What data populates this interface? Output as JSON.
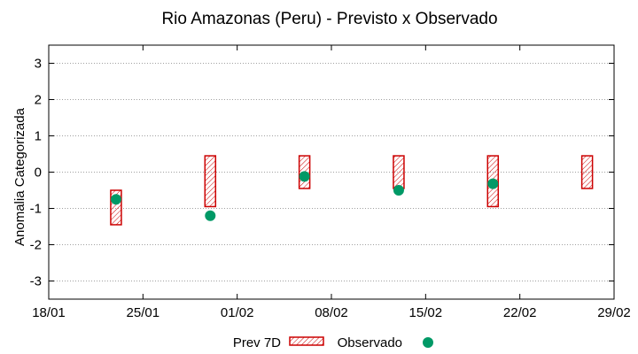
{
  "chart_data": {
    "type": "range-bar-with-points",
    "title": "Rio Amazonas (Peru) - Previsto x Observado",
    "ylabel": "Anomalia Categorizada",
    "xlabel": "",
    "ylim": [
      -3.5,
      3.5
    ],
    "yticks": [
      "3",
      "2",
      "1",
      "0",
      "-1",
      "-2",
      "-3"
    ],
    "ytick_values": [
      3,
      2,
      1,
      0,
      -1,
      -2,
      -3
    ],
    "xlim_days": [
      0,
      42
    ],
    "xticks": [
      "18/01",
      "25/01",
      "01/02",
      "08/02",
      "15/02",
      "22/02",
      "29/02"
    ],
    "xtick_days": [
      0,
      7,
      14,
      21,
      28,
      35,
      42
    ],
    "grid": true,
    "legend_position": "bottom-center",
    "series": [
      {
        "name": "Prev 7D",
        "kind": "range",
        "color": "#cc0000",
        "points": [
          {
            "day": 5,
            "low": -1.45,
            "high": -0.5
          },
          {
            "day": 12,
            "low": -0.95,
            "high": 0.45
          },
          {
            "day": 19,
            "low": -0.45,
            "high": 0.45
          },
          {
            "day": 26,
            "low": -0.45,
            "high": 0.45
          },
          {
            "day": 33,
            "low": -0.95,
            "high": 0.45
          },
          {
            "day": 40,
            "low": -0.45,
            "high": 0.45
          }
        ]
      },
      {
        "name": "Observado",
        "kind": "point",
        "color": "#009966",
        "points": [
          {
            "day": 5,
            "value": -0.75
          },
          {
            "day": 12,
            "value": -1.2
          },
          {
            "day": 19,
            "value": -0.12
          },
          {
            "day": 26,
            "value": -0.5
          },
          {
            "day": 33,
            "value": -0.32
          }
        ]
      }
    ]
  }
}
